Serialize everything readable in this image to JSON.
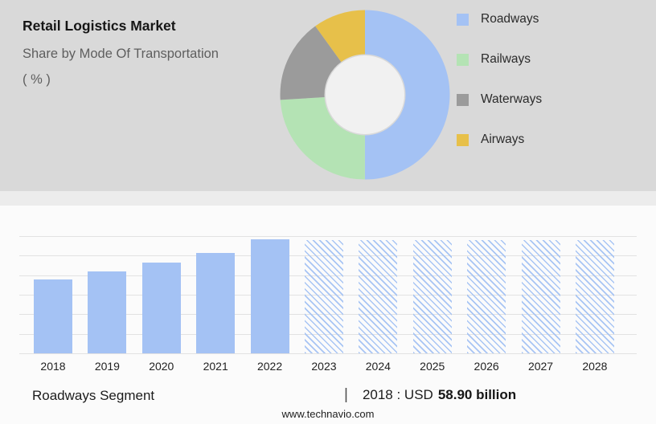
{
  "header": {
    "title": "Retail Logistics Market",
    "subtitle": "Share by Mode Of Transportation",
    "subtitle_unit": "( % )"
  },
  "legend": {
    "items": [
      {
        "label": "Roadways",
        "color": "#a4c2f4"
      },
      {
        "label": "Railways",
        "color": "#b4e3b4"
      },
      {
        "label": "Waterways",
        "color": "#9b9b9b"
      },
      {
        "label": "Airways",
        "color": "#e7c04a"
      }
    ]
  },
  "chart_data": [
    {
      "type": "pie",
      "subtype": "donut",
      "title": "Retail Logistics Market — Share by Mode Of Transportation ( % )",
      "labels": [
        "Roadways",
        "Railways",
        "Waterways",
        "Airways"
      ],
      "values": [
        50,
        24,
        16,
        10
      ],
      "colors": [
        "#a4c2f4",
        "#b4e3b4",
        "#9b9b9b",
        "#e7c04a"
      ],
      "legend_position": "right",
      "hole_color": "#f1f1f1"
    },
    {
      "type": "bar",
      "title": "Roadways Segment",
      "unit": "USD billion",
      "categories": [
        "2018",
        "2019",
        "2020",
        "2021",
        "2022",
        "2023",
        "2024",
        "2025",
        "2026",
        "2027",
        "2028"
      ],
      "values": [
        58.9,
        65.4,
        72.3,
        80.1,
        90.9,
        null,
        null,
        null,
        null,
        null,
        null
      ],
      "forecast": [
        false,
        false,
        false,
        false,
        false,
        true,
        true,
        true,
        true,
        true,
        true
      ],
      "ymax": 93.2,
      "bar_color": "#a4c2f4",
      "forecast_style": "hatched",
      "grid": true,
      "annotation": "2018 : USD 58.90 billion"
    }
  ],
  "caption": {
    "segment": "Roadways Segment",
    "separator": "|",
    "value_prefix": "2018 : USD",
    "value": "58.90 billion"
  },
  "footer": {
    "website": "www.technavio.com"
  }
}
